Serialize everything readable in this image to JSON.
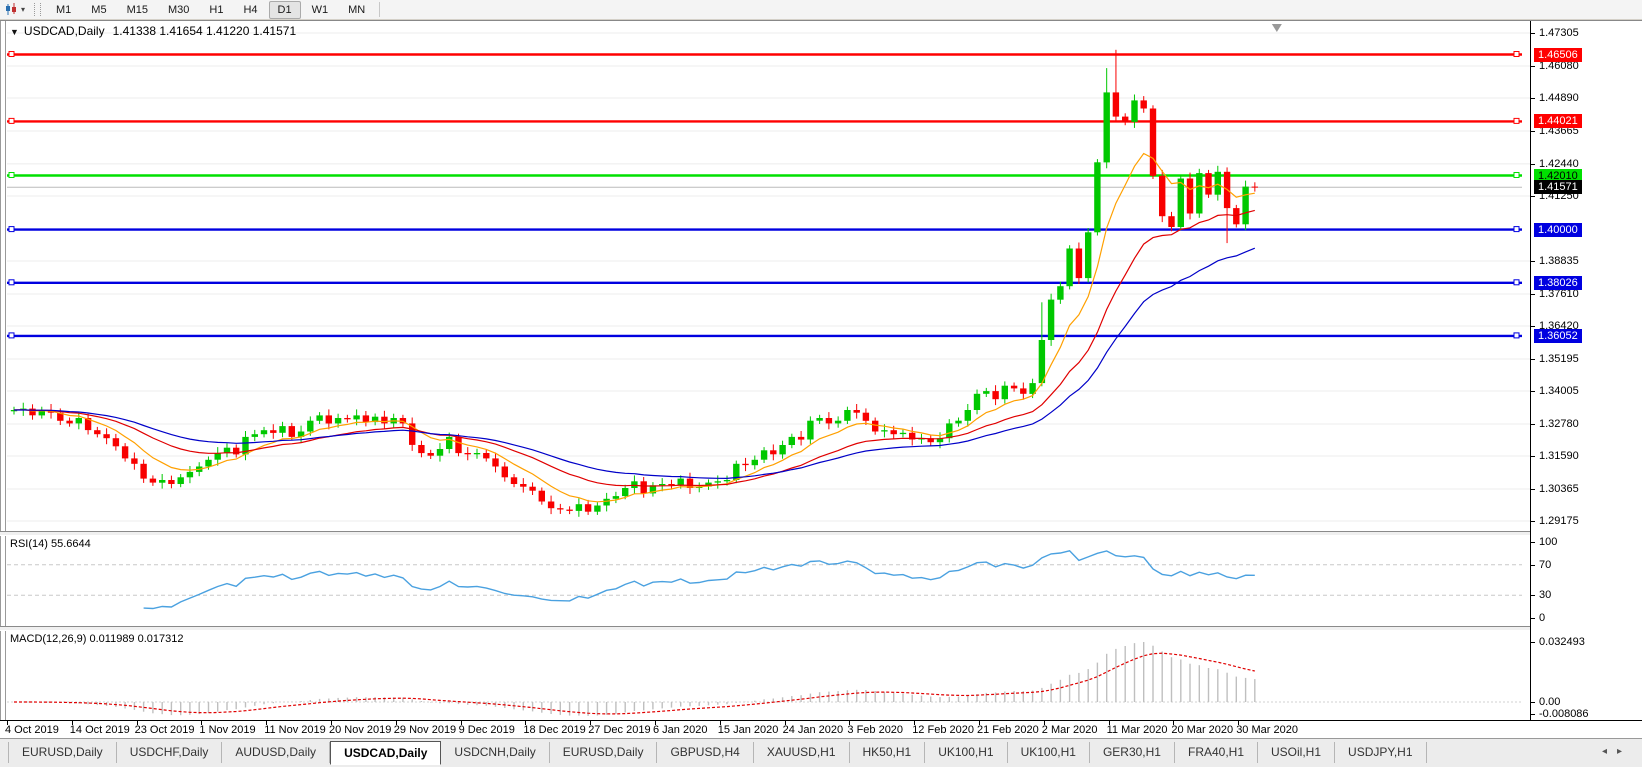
{
  "toolbar": {
    "timeframes": [
      "M1",
      "M5",
      "M15",
      "M30",
      "H1",
      "H4",
      "D1",
      "W1",
      "MN"
    ],
    "active_timeframe": "D1",
    "dropdown_arrow": "▾"
  },
  "window_title": {
    "collapse_arrow": "▼",
    "symbol": "USDCAD,Daily",
    "ohlc": "1.41338 1.41654 1.41220 1.41571"
  },
  "colors": {
    "up": "#00C800",
    "down": "#F80000",
    "ma_fast": "#FFA000",
    "ma_mid": "#E00000",
    "ma_slow": "#0000C8",
    "grid": "#ECECEC",
    "rsi_line": "#4AA1E0",
    "macd_hist": "#BFBFBF",
    "macd_signal": "#E00000",
    "current_line": "#BBBBBB",
    "shift_marker": "#999999"
  },
  "chart_data": {
    "type": "candlestick",
    "symbol": "USDCAD",
    "timeframe": "Daily",
    "ohlc_display": {
      "open": "1.41338",
      "high": "1.41654",
      "low": "1.41220",
      "close": "1.41571"
    },
    "closes": [
      1.333,
      1.3335,
      1.331,
      1.333,
      1.332,
      1.329,
      1.328,
      1.33,
      1.3255,
      1.324,
      1.3225,
      1.3195,
      1.315,
      1.313,
      1.3075,
      1.306,
      1.307,
      1.3055,
      1.308,
      1.31,
      1.312,
      1.3145,
      1.317,
      1.319,
      1.3165,
      1.323,
      1.324,
      1.3255,
      1.3245,
      1.327,
      1.323,
      1.325,
      1.329,
      1.331,
      1.328,
      1.33,
      1.3295,
      1.331,
      1.3285,
      1.3305,
      1.328,
      1.33,
      1.328,
      1.32,
      1.317,
      1.316,
      1.3185,
      1.323,
      1.317,
      1.3165,
      1.317,
      1.315,
      1.312,
      1.308,
      1.3055,
      1.3045,
      1.303,
      1.299,
      1.2965,
      1.296,
      1.2955,
      1.298,
      1.2952,
      1.2975,
      1.3,
      1.301,
      1.304,
      1.3065,
      1.302,
      1.305,
      1.3055,
      1.305,
      1.3075,
      1.304,
      1.3045,
      1.306,
      1.3065,
      1.307,
      1.313,
      1.3125,
      1.3145,
      1.318,
      1.3165,
      1.32,
      1.323,
      1.322,
      1.329,
      1.33,
      1.328,
      1.329,
      1.333,
      1.332,
      1.329,
      1.325,
      1.3255,
      1.324,
      1.3245,
      1.322,
      1.3225,
      1.321,
      1.3225,
      1.328,
      1.329,
      1.333,
      1.339,
      1.34,
      1.337,
      1.342,
      1.341,
      1.339,
      1.343,
      1.359,
      1.374,
      1.379,
      1.393,
      1.382,
      1.399,
      1.425,
      1.451,
      1.442,
      1.44,
      1.448,
      1.445,
      1.42,
      1.405,
      1.401,
      1.419,
      1.406,
      1.421,
      1.413,
      1.4215,
      1.408,
      1.402,
      1.416,
      1.41571
    ],
    "wick_overrides": [
      {
        "index": 62,
        "low": 1.294
      },
      {
        "index": 111,
        "high": 1.373
      },
      {
        "index": 118,
        "high": 1.46
      },
      {
        "index": 119,
        "high": 1.4668
      },
      {
        "index": 131,
        "low": 1.395
      }
    ],
    "x_labels": [
      "4 Oct 2019",
      "14 Oct 2019",
      "23 Oct 2019",
      "1 Nov 2019",
      "11 Nov 2019",
      "20 Nov 2019",
      "29 Nov 2019",
      "9 Dec 2019",
      "18 Dec 2019",
      "27 Dec 2019",
      "6 Jan 2020",
      "15 Jan 2020",
      "24 Jan 2020",
      "3 Feb 2020",
      "12 Feb 2020",
      "21 Feb 2020",
      "2 Mar 2020",
      "11 Mar 2020",
      "20 Mar 2020",
      "30 Mar 2020"
    ],
    "price_axis": {
      "max": 1.47305,
      "min": 1.29175,
      "ticks": [
        "1.47305",
        "1.46080",
        "1.44890",
        "1.43665",
        "1.42440",
        "1.41250",
        "1.38835",
        "1.37610",
        "1.36420",
        "1.35195",
        "1.34005",
        "1.32780",
        "1.31590",
        "1.30365",
        "1.29175"
      ]
    },
    "hlines": [
      {
        "value": 1.46506,
        "label": "1.46506",
        "color": "#FF0000",
        "text": "#FFFFFF"
      },
      {
        "value": 1.44021,
        "label": "1.44021",
        "color": "#FF0000",
        "text": "#FFFFFF"
      },
      {
        "value": 1.4201,
        "label": "1.42010",
        "color": "#00E000",
        "text": "#000000"
      },
      {
        "value": 1.4,
        "label": "1.40000",
        "color": "#0000E0",
        "text": "#FFFFFF"
      },
      {
        "value": 1.38026,
        "label": "1.38026",
        "color": "#0000E0",
        "text": "#FFFFFF"
      },
      {
        "value": 1.36052,
        "label": "1.36052",
        "color": "#0000E0",
        "text": "#FFFFFF"
      }
    ],
    "current_price": {
      "value": 1.41571,
      "label": "1.41571",
      "badge_bg": "#000000",
      "badge_text": "#FFFFFF"
    },
    "moving_averages": [
      {
        "period": 8,
        "color": "#FFA000"
      },
      {
        "period": 20,
        "color": "#E00000"
      },
      {
        "period": 34,
        "color": "#0000C8"
      }
    ],
    "rsi": {
      "name": "RSI(14)",
      "value": "55.6644",
      "period": 14,
      "levels": [
        70,
        30
      ],
      "scale_ticks": [
        "100",
        "70",
        "30",
        "0"
      ]
    },
    "macd": {
      "name": "MACD(12,26,9)",
      "values": "0.011989 0.017312",
      "fast": 12,
      "slow": 26,
      "signal": 9,
      "scale_ticks": [
        "0.032493",
        "0.00",
        "-0.008086"
      ]
    }
  },
  "tabs": {
    "items": [
      "EURUSD,Daily",
      "USDCHF,Daily",
      "AUDUSD,Daily",
      "USDCAD,Daily",
      "USDCNH,Daily",
      "EURUSD,Daily",
      "GBPUSD,H4",
      "XAUUSD,H1",
      "HK50,H1",
      "UK100,H1",
      "UK100,H1",
      "GER30,H1",
      "FRA40,H1",
      "USOil,H1",
      "USDJPY,H1"
    ],
    "active_index": 3,
    "scroll_left": "◂",
    "scroll_right": "▸"
  }
}
